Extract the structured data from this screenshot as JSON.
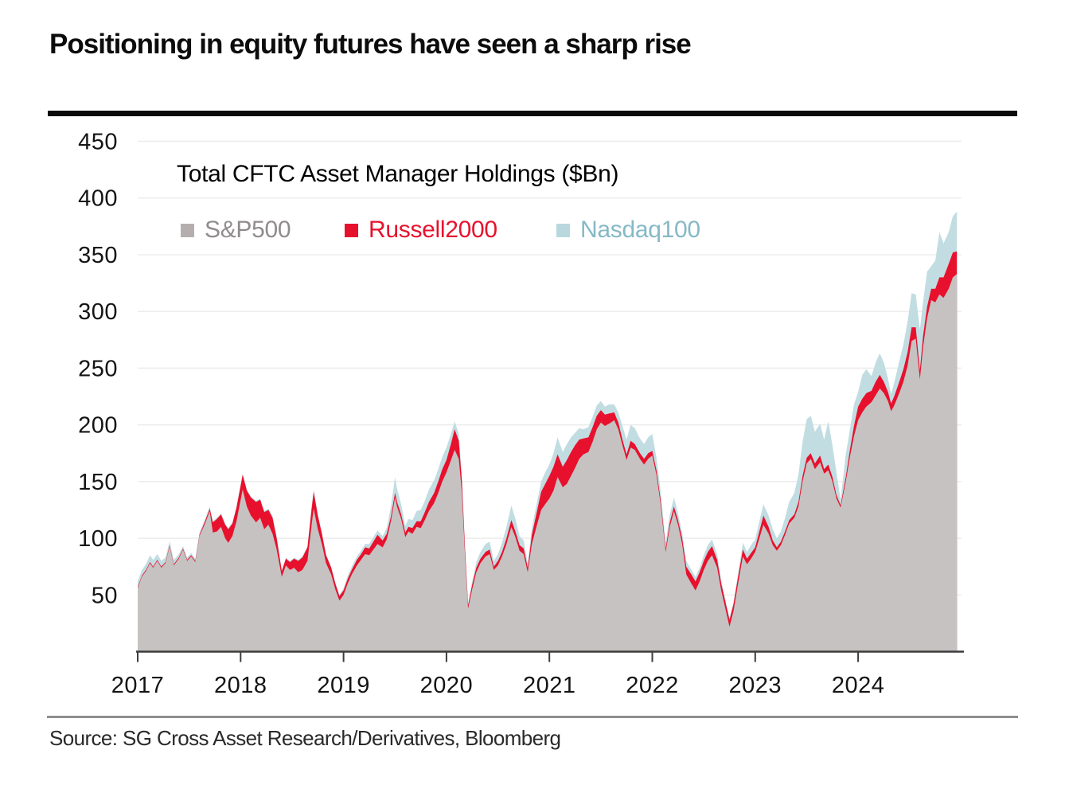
{
  "header": {
    "title": "Positioning in equity futures have seen a sharp rise"
  },
  "footer": {
    "source": "Source: SG Cross Asset Research/Derivatives, Bloomberg"
  },
  "chart_data": {
    "type": "area",
    "stacked": true,
    "title": "Total CFTC Asset Manager Holdings ($Bn)",
    "unit": "$Bn",
    "grid": "horizontal",
    "legend_position": "top-left",
    "xlim": [
      2017.0,
      2025.0
    ],
    "ylim": [
      0,
      460
    ],
    "x_ticks": [
      2017,
      2018,
      2019,
      2020,
      2021,
      2022,
      2023,
      2024
    ],
    "y_ticks": [
      50,
      100,
      150,
      200,
      250,
      300,
      350,
      400,
      450
    ],
    "series": [
      {
        "name": "S&P500",
        "color": "#c6c2c1",
        "swatch": "#b4afae",
        "text_color": "#918c8c"
      },
      {
        "name": "Russell2000",
        "color": "#e8112d",
        "swatch": "#e8112d",
        "text_color": "#e8112d"
      },
      {
        "name": "Nasdaq100",
        "color": "#c1dde2",
        "swatch": "#b9d8de",
        "text_color": "#85b9c5"
      }
    ],
    "points_format": [
      "x_decimal_year",
      "sp500_band",
      "russell2000_band",
      "nasdaq100_band"
    ],
    "points": [
      [
        2017.0,
        56,
        1,
        5
      ],
      [
        2017.04,
        66,
        1,
        5
      ],
      [
        2017.08,
        71,
        1,
        5
      ],
      [
        2017.12,
        78,
        1,
        6
      ],
      [
        2017.15,
        74,
        1,
        6
      ],
      [
        2017.19,
        80,
        1,
        5
      ],
      [
        2017.23,
        74,
        1,
        5
      ],
      [
        2017.27,
        78,
        1,
        4
      ],
      [
        2017.31,
        93,
        1,
        3
      ],
      [
        2017.35,
        76,
        1,
        4
      ],
      [
        2017.4,
        82,
        1,
        3
      ],
      [
        2017.44,
        90,
        1,
        2
      ],
      [
        2017.48,
        80,
        1,
        2
      ],
      [
        2017.52,
        84,
        1,
        2
      ],
      [
        2017.56,
        79,
        1,
        2
      ],
      [
        2017.6,
        102,
        1,
        2
      ],
      [
        2017.65,
        112,
        2,
        2
      ],
      [
        2017.7,
        124,
        2,
        2
      ],
      [
        2017.73,
        105,
        9,
        1
      ],
      [
        2017.77,
        106,
        11,
        1
      ],
      [
        2017.81,
        110,
        11,
        1
      ],
      [
        2017.85,
        100,
        12,
        1
      ],
      [
        2017.88,
        96,
        12,
        1
      ],
      [
        2017.92,
        102,
        11,
        1
      ],
      [
        2017.96,
        115,
        12,
        1
      ],
      [
        2018.02,
        143,
        13,
        1
      ],
      [
        2018.06,
        128,
        14,
        1
      ],
      [
        2018.1,
        120,
        16,
        1
      ],
      [
        2018.15,
        114,
        18,
        1
      ],
      [
        2018.19,
        118,
        16,
        1
      ],
      [
        2018.23,
        108,
        15,
        1
      ],
      [
        2018.27,
        112,
        13,
        1
      ],
      [
        2018.31,
        104,
        14,
        2
      ],
      [
        2018.35,
        90,
        10,
        2
      ],
      [
        2018.4,
        66,
        5,
        1
      ],
      [
        2018.44,
        76,
        6,
        1
      ],
      [
        2018.48,
        72,
        7,
        1
      ],
      [
        2018.52,
        74,
        8,
        1
      ],
      [
        2018.56,
        70,
        10,
        1
      ],
      [
        2018.6,
        72,
        11,
        1
      ],
      [
        2018.65,
        80,
        12,
        1
      ],
      [
        2018.69,
        112,
        14,
        2
      ],
      [
        2018.71,
        126,
        15,
        2
      ],
      [
        2018.75,
        108,
        12,
        1
      ],
      [
        2018.79,
        95,
        9,
        1
      ],
      [
        2018.83,
        78,
        7,
        1
      ],
      [
        2018.88,
        68,
        6,
        1
      ],
      [
        2018.92,
        55,
        5,
        1
      ],
      [
        2018.96,
        45,
        4,
        1
      ],
      [
        2019.0,
        50,
        4,
        2
      ],
      [
        2019.04,
        60,
        4,
        3
      ],
      [
        2019.08,
        68,
        4,
        3
      ],
      [
        2019.13,
        76,
        5,
        3
      ],
      [
        2019.17,
        81,
        5,
        3
      ],
      [
        2019.21,
        86,
        6,
        3
      ],
      [
        2019.25,
        85,
        6,
        4
      ],
      [
        2019.29,
        90,
        7,
        4
      ],
      [
        2019.33,
        95,
        8,
        4
      ],
      [
        2019.38,
        92,
        6,
        4
      ],
      [
        2019.42,
        99,
        5,
        5
      ],
      [
        2019.46,
        115,
        4,
        9
      ],
      [
        2019.5,
        136,
        4,
        14
      ],
      [
        2019.52,
        128,
        4,
        12
      ],
      [
        2019.56,
        117,
        4,
        9
      ],
      [
        2019.6,
        101,
        4,
        6
      ],
      [
        2019.63,
        106,
        4,
        7
      ],
      [
        2019.67,
        104,
        5,
        7
      ],
      [
        2019.71,
        110,
        5,
        9
      ],
      [
        2019.75,
        109,
        6,
        10
      ],
      [
        2019.79,
        116,
        7,
        10
      ],
      [
        2019.83,
        124,
        8,
        11
      ],
      [
        2019.88,
        131,
        9,
        11
      ],
      [
        2019.92,
        140,
        10,
        11
      ],
      [
        2019.96,
        150,
        11,
        11
      ],
      [
        2020.0,
        158,
        11,
        11
      ],
      [
        2020.04,
        168,
        14,
        9
      ],
      [
        2020.08,
        178,
        18,
        7
      ],
      [
        2020.12,
        170,
        16,
        6
      ],
      [
        2020.15,
        140,
        10,
        5
      ],
      [
        2020.18,
        85,
        6,
        3
      ],
      [
        2020.21,
        38,
        3,
        2
      ],
      [
        2020.25,
        55,
        4,
        3
      ],
      [
        2020.29,
        70,
        4,
        5
      ],
      [
        2020.33,
        78,
        4,
        6
      ],
      [
        2020.38,
        84,
        4,
        7
      ],
      [
        2020.42,
        86,
        4,
        7
      ],
      [
        2020.46,
        72,
        3,
        5
      ],
      [
        2020.5,
        76,
        4,
        6
      ],
      [
        2020.54,
        84,
        4,
        8
      ],
      [
        2020.58,
        94,
        5,
        10
      ],
      [
        2020.63,
        110,
        6,
        13
      ],
      [
        2020.67,
        101,
        5,
        11
      ],
      [
        2020.71,
        89,
        5,
        8
      ],
      [
        2020.75,
        86,
        5,
        7
      ],
      [
        2020.79,
        70,
        4,
        4
      ],
      [
        2020.83,
        95,
        8,
        6
      ],
      [
        2020.88,
        112,
        12,
        8
      ],
      [
        2020.92,
        125,
        16,
        9
      ],
      [
        2020.96,
        130,
        18,
        10
      ],
      [
        2021.0,
        135,
        20,
        10
      ],
      [
        2021.04,
        142,
        21,
        12
      ],
      [
        2021.08,
        154,
        20,
        15
      ],
      [
        2021.13,
        145,
        18,
        13
      ],
      [
        2021.17,
        148,
        21,
        14
      ],
      [
        2021.21,
        155,
        21,
        13
      ],
      [
        2021.25,
        162,
        20,
        11
      ],
      [
        2021.29,
        170,
        17,
        10
      ],
      [
        2021.33,
        174,
        14,
        8
      ],
      [
        2021.38,
        176,
        13,
        9
      ],
      [
        2021.42,
        185,
        13,
        9
      ],
      [
        2021.46,
        196,
        12,
        9
      ],
      [
        2021.5,
        202,
        11,
        8
      ],
      [
        2021.54,
        199,
        10,
        7
      ],
      [
        2021.58,
        201,
        9,
        8
      ],
      [
        2021.63,
        204,
        7,
        7
      ],
      [
        2021.67,
        196,
        6,
        9
      ],
      [
        2021.71,
        182,
        5,
        12
      ],
      [
        2021.75,
        169,
        5,
        13
      ],
      [
        2021.79,
        180,
        6,
        14
      ],
      [
        2021.83,
        178,
        5,
        14
      ],
      [
        2021.88,
        170,
        5,
        13
      ],
      [
        2021.92,
        165,
        5,
        13
      ],
      [
        2021.96,
        170,
        5,
        14
      ],
      [
        2022.0,
        173,
        4,
        15
      ],
      [
        2022.04,
        156,
        4,
        11
      ],
      [
        2022.08,
        131,
        4,
        8
      ],
      [
        2022.13,
        88,
        3,
        5
      ],
      [
        2022.17,
        110,
        4,
        7
      ],
      [
        2022.21,
        124,
        4,
        8
      ],
      [
        2022.25,
        112,
        4,
        6
      ],
      [
        2022.29,
        95,
        5,
        5
      ],
      [
        2022.33,
        68,
        7,
        5
      ],
      [
        2022.38,
        60,
        8,
        4
      ],
      [
        2022.42,
        54,
        8,
        4
      ],
      [
        2022.46,
        62,
        8,
        4
      ],
      [
        2022.5,
        72,
        8,
        5
      ],
      [
        2022.54,
        80,
        8,
        6
      ],
      [
        2022.58,
        85,
        8,
        6
      ],
      [
        2022.63,
        74,
        7,
        5
      ],
      [
        2022.67,
        54,
        6,
        3
      ],
      [
        2022.71,
        38,
        6,
        2
      ],
      [
        2022.75,
        22,
        6,
        2
      ],
      [
        2022.79,
        36,
        6,
        2
      ],
      [
        2022.83,
        58,
        6,
        3
      ],
      [
        2022.88,
        84,
        6,
        6
      ],
      [
        2022.92,
        77,
        5,
        6
      ],
      [
        2022.96,
        82,
        5,
        7
      ],
      [
        2023.0,
        88,
        4,
        7
      ],
      [
        2023.04,
        100,
        6,
        9
      ],
      [
        2023.08,
        112,
        8,
        10
      ],
      [
        2023.13,
        104,
        6,
        10
      ],
      [
        2023.17,
        94,
        4,
        10
      ],
      [
        2023.21,
        89,
        3,
        8
      ],
      [
        2023.25,
        94,
        3,
        9
      ],
      [
        2023.29,
        103,
        3,
        12
      ],
      [
        2023.33,
        113,
        3,
        16
      ],
      [
        2023.38,
        118,
        3,
        19
      ],
      [
        2023.42,
        128,
        4,
        24
      ],
      [
        2023.46,
        150,
        5,
        30
      ],
      [
        2023.5,
        166,
        5,
        34
      ],
      [
        2023.54,
        170,
        5,
        33
      ],
      [
        2023.58,
        161,
        5,
        28
      ],
      [
        2023.63,
        167,
        6,
        28
      ],
      [
        2023.67,
        157,
        4,
        26
      ],
      [
        2023.71,
        160,
        5,
        38
      ],
      [
        2023.75,
        150,
        4,
        28
      ],
      [
        2023.79,
        135,
        3,
        20
      ],
      [
        2023.83,
        127,
        2,
        5
      ],
      [
        2023.88,
        150,
        4,
        20
      ],
      [
        2023.92,
        172,
        6,
        18
      ],
      [
        2023.96,
        190,
        9,
        19
      ],
      [
        2024.0,
        204,
        12,
        13
      ],
      [
        2024.04,
        211,
        12,
        21
      ],
      [
        2024.08,
        216,
        12,
        21
      ],
      [
        2024.13,
        220,
        10,
        13
      ],
      [
        2024.17,
        226,
        12,
        17
      ],
      [
        2024.21,
        232,
        12,
        19
      ],
      [
        2024.25,
        228,
        10,
        17
      ],
      [
        2024.29,
        221,
        8,
        12
      ],
      [
        2024.32,
        212,
        7,
        8
      ],
      [
        2024.35,
        217,
        8,
        12
      ],
      [
        2024.4,
        228,
        10,
        18
      ],
      [
        2024.44,
        238,
        11,
        22
      ],
      [
        2024.48,
        252,
        12,
        27
      ],
      [
        2024.52,
        274,
        12,
        30
      ],
      [
        2024.56,
        276,
        10,
        29
      ],
      [
        2024.6,
        240,
        8,
        36
      ],
      [
        2024.63,
        268,
        10,
        30
      ],
      [
        2024.67,
        294,
        10,
        31
      ],
      [
        2024.71,
        310,
        10,
        20
      ],
      [
        2024.75,
        308,
        12,
        25
      ],
      [
        2024.79,
        315,
        15,
        40
      ],
      [
        2024.83,
        312,
        18,
        30
      ],
      [
        2024.88,
        320,
        22,
        28
      ],
      [
        2024.92,
        330,
        22,
        32
      ],
      [
        2024.96,
        333,
        20,
        35
      ]
    ]
  }
}
